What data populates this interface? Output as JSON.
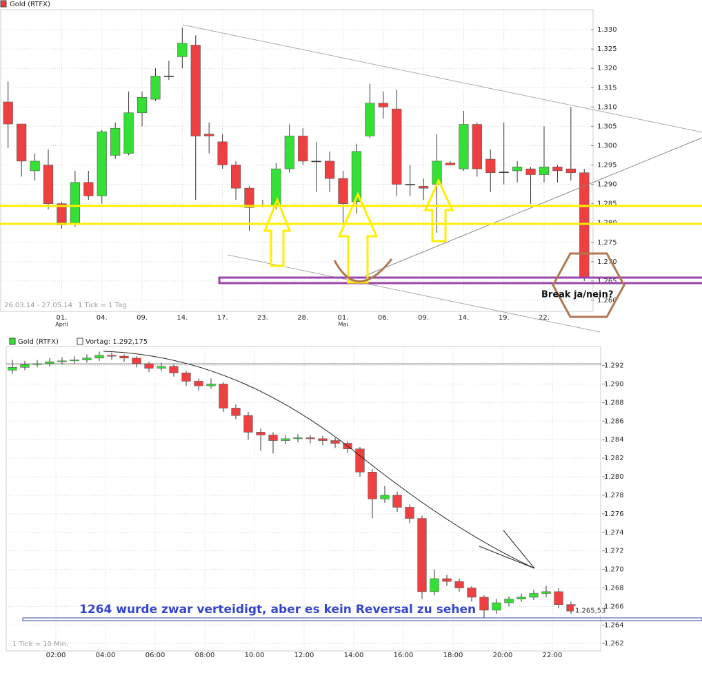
{
  "chart_data": [
    {
      "type": "candlestick",
      "date_range": "26.03.14 - 27.05.14",
      "tick_info": "1 Tick = 1 Tag",
      "annotation": "Break ja/nein?",
      "categories": [
        null,
        null,
        null,
        null,
        "01.",
        null,
        null,
        "04.",
        null,
        null,
        "09.",
        null,
        null,
        "14.",
        null,
        null,
        "17.",
        null,
        null,
        "23.",
        null,
        null,
        "28.",
        null,
        null,
        "01.",
        null,
        null,
        "06.",
        null,
        null,
        "09.",
        null,
        null,
        "14.",
        null,
        null,
        "19.",
        null,
        null,
        "22.",
        null,
        null,
        null
      ],
      "months": [
        null,
        null,
        null,
        null,
        "April",
        null,
        null,
        null,
        null,
        null,
        null,
        null,
        null,
        null,
        null,
        null,
        null,
        null,
        null,
        null,
        null,
        null,
        null,
        null,
        null,
        "Mai",
        null,
        null,
        null,
        null,
        null,
        null,
        null,
        null,
        null,
        null,
        null,
        null,
        null,
        null,
        null,
        null,
        null,
        null
      ],
      "series": [
        {
          "name": "Gold (RTFX)",
          "up_color": "#33e033",
          "down_color": "#ee4040",
          "open": [
            1.3113,
            1.3056,
            1.2935,
            1.295,
            1.285,
            1.28,
            1.2905,
            1.287,
            1.2975,
            1.298,
            1.3085,
            1.312,
            1.318,
            1.323,
            1.326,
            1.303,
            1.301,
            1.295,
            1.289,
            1.2845,
            1.2845,
            1.294,
            1.3025,
            1.296,
            1.296,
            1.2915,
            1.2855,
            1.3025,
            1.311,
            1.3095,
            1.29,
            1.2895,
            1.29,
            1.2955,
            1.294,
            1.3055,
            1.2965,
            1.2932,
            1.2935,
            1.294,
            1.2925,
            1.2945,
            1.294,
            1.293
          ],
          "high": [
            1.3166,
            1.3056,
            1.298,
            1.299,
            1.2855,
            1.2935,
            1.2935,
            1.304,
            1.306,
            1.314,
            1.314,
            1.32,
            1.322,
            1.3305,
            1.3285,
            1.306,
            1.303,
            1.296,
            1.2895,
            1.286,
            1.2955,
            1.3055,
            1.3045,
            1.301,
            1.2985,
            1.2935,
            1.3005,
            1.316,
            1.314,
            1.3145,
            1.295,
            1.2915,
            1.303,
            1.296,
            1.309,
            1.306,
            1.299,
            1.306,
            1.296,
            1.2945,
            1.305,
            1.295,
            1.31,
            1.294
          ],
          "low": [
            1.2994,
            1.292,
            1.291,
            1.2835,
            1.2785,
            1.279,
            1.286,
            1.285,
            1.2965,
            1.2975,
            1.305,
            1.3115,
            1.317,
            1.32,
            1.286,
            1.298,
            1.294,
            1.286,
            1.278,
            1.284,
            1.2835,
            1.293,
            1.295,
            1.288,
            1.288,
            1.28,
            1.2825,
            1.302,
            1.307,
            1.287,
            1.287,
            1.286,
            1.2775,
            1.295,
            1.2935,
            1.292,
            1.288,
            1.29,
            1.2905,
            1.285,
            1.2905,
            1.2905,
            1.291,
            1.265
          ],
          "close": [
            1.3056,
            1.296,
            1.296,
            1.285,
            1.2795,
            1.2905,
            1.287,
            1.3036,
            1.3045,
            1.3085,
            1.3125,
            1.318,
            1.318,
            1.3265,
            1.3025,
            1.3025,
            1.295,
            1.289,
            1.284,
            1.2845,
            1.294,
            1.3025,
            1.296,
            1.296,
            1.2915,
            1.285,
            1.2985,
            1.311,
            1.31,
            1.29,
            1.29,
            1.289,
            1.296,
            1.295,
            1.3055,
            1.294,
            1.293,
            1.2932,
            1.2945,
            1.2925,
            1.2945,
            1.2935,
            1.293,
            1.266
          ]
        }
      ],
      "ylim": [
        1.2575,
        1.335
      ],
      "yticks": [
        {
          "value": 1.26,
          "label": "1.260"
        },
        1.265,
        {
          "value": 1.27,
          "label": "1.270"
        },
        1.275,
        {
          "value": 1.28,
          "label": "1.280"
        },
        1.285,
        {
          "value": 1.29,
          "label": "1.290"
        },
        1.295,
        {
          "value": 1.3,
          "label": "1.300"
        },
        1.305,
        {
          "value": 1.31,
          "label": "1.310"
        },
        1.315,
        {
          "value": 1.32,
          "label": "1.320"
        },
        1.325,
        {
          "value": 1.33,
          "label": "1.330"
        }
      ],
      "grid": true
    },
    {
      "type": "candlestick",
      "tick_info": "1 Tick = 10 Min.",
      "annotation": "1264 wurde zwar verteidigt, aber es kein Reversal zu sehen",
      "previous_close": {
        "value": 1.292175,
        "label": "Vortag: 1.292,175"
      },
      "last_price": {
        "value": 1.26553,
        "label": "1.265,53"
      },
      "x": [
        0.25,
        0.75,
        1.25,
        1.75,
        2.25,
        2.75,
        3.25,
        3.75,
        4.25,
        4.75,
        5.25,
        5.75,
        6.25,
        6.75,
        7.25,
        7.75,
        8.25,
        8.75,
        9.25,
        9.75,
        10.25,
        10.75,
        11.25,
        11.75,
        12.25,
        12.75,
        13.25,
        13.75,
        14.25,
        14.75,
        15.25,
        15.75,
        16.25,
        16.75,
        17.25,
        17.75,
        18.25,
        18.75,
        19.25,
        19.75,
        20.25,
        20.75,
        21.25,
        21.75,
        22.25,
        22.75
      ],
      "series": [
        {
          "name": "Gold (RTFX)",
          "up_color": "#33e033",
          "down_color": "#ee4040",
          "open": [
            1.2915,
            1.2918,
            1.2921,
            1.2922,
            1.2924,
            1.2925,
            1.2926,
            1.2928,
            1.2931,
            1.293,
            1.2928,
            1.2922,
            1.2917,
            1.2919,
            1.2912,
            1.2903,
            1.2898,
            1.29,
            1.2874,
            1.2866,
            1.2848,
            1.2845,
            1.2839,
            1.2841,
            1.2842,
            1.2841,
            1.2839,
            1.2836,
            1.283,
            1.2805,
            1.2776,
            1.278,
            1.2767,
            1.2755,
            1.2676,
            1.269,
            1.2687,
            1.268,
            1.267,
            1.2656,
            1.2664,
            1.2668,
            1.267,
            1.2674,
            1.2676,
            1.2662
          ],
          "high": [
            1.2926,
            1.2925,
            1.2926,
            1.2928,
            1.2929,
            1.293,
            1.2932,
            1.2935,
            1.2934,
            1.2932,
            1.293,
            1.2924,
            1.2923,
            1.2921,
            1.2914,
            1.2906,
            1.2906,
            1.2902,
            1.2878,
            1.287,
            1.2852,
            1.2848,
            1.2845,
            1.2846,
            1.2845,
            1.2844,
            1.2842,
            1.2838,
            1.2832,
            1.2808,
            1.279,
            1.2784,
            1.277,
            1.2758,
            1.27,
            1.2694,
            1.269,
            1.2682,
            1.2672,
            1.2668,
            1.2671,
            1.2674,
            1.2678,
            1.2682,
            1.268,
            1.2665
          ],
          "low": [
            1.2911,
            1.2915,
            1.2918,
            1.2919,
            1.2921,
            1.2922,
            1.2923,
            1.2925,
            1.2926,
            1.2924,
            1.2918,
            1.2913,
            1.2914,
            1.2908,
            1.2898,
            1.2893,
            1.2895,
            1.287,
            1.2862,
            1.284,
            1.2828,
            1.2825,
            1.2835,
            1.2837,
            1.2836,
            1.2834,
            1.2831,
            1.2826,
            1.28,
            1.2755,
            1.2772,
            1.2762,
            1.275,
            1.2668,
            1.2672,
            1.2682,
            1.2676,
            1.2665,
            1.2648,
            1.2652,
            1.266,
            1.2665,
            1.2667,
            1.267,
            1.2658,
            1.2652
          ],
          "close": [
            1.2918,
            1.2921,
            1.2922,
            1.2924,
            1.2925,
            1.2926,
            1.2928,
            1.2931,
            1.293,
            1.2928,
            1.2922,
            1.2917,
            1.2919,
            1.2912,
            1.2903,
            1.2898,
            1.29,
            1.2874,
            1.2866,
            1.2848,
            1.2845,
            1.2839,
            1.2841,
            1.2842,
            1.2841,
            1.2839,
            1.2836,
            1.283,
            1.2805,
            1.2776,
            1.278,
            1.2767,
            1.2755,
            1.2676,
            1.269,
            1.2687,
            1.268,
            1.267,
            1.2656,
            1.2664,
            1.2668,
            1.267,
            1.2674,
            1.2676,
            1.2662,
            1.2655
          ]
        }
      ],
      "xlim": [
        0,
        24
      ],
      "xticks": [
        {
          "value": 2,
          "label": "02:00"
        },
        {
          "value": 4,
          "label": "04:00"
        },
        {
          "value": 6,
          "label": "06:00"
        },
        {
          "value": 8,
          "label": "08:00"
        },
        {
          "value": 10,
          "label": "10:00"
        },
        {
          "value": 12,
          "label": "12:00"
        },
        {
          "value": 14,
          "label": "14:00"
        },
        {
          "value": 16,
          "label": "16:00"
        },
        {
          "value": 18,
          "label": "18:00"
        },
        {
          "value": 20,
          "label": "20:00"
        },
        {
          "value": 22,
          "label": "22:00"
        }
      ],
      "ylim": [
        1.2612,
        1.2939
      ],
      "yticks": [
        1.262,
        1.264,
        1.266,
        1.268,
        {
          "value": 1.27,
          "label": "1.270"
        },
        1.272,
        1.274,
        1.276,
        1.278,
        {
          "value": 1.28,
          "label": "1.280"
        },
        1.282,
        1.284,
        1.286,
        1.288,
        {
          "value": 1.29,
          "label": "1.290"
        },
        1.292
      ],
      "grid": true
    }
  ]
}
